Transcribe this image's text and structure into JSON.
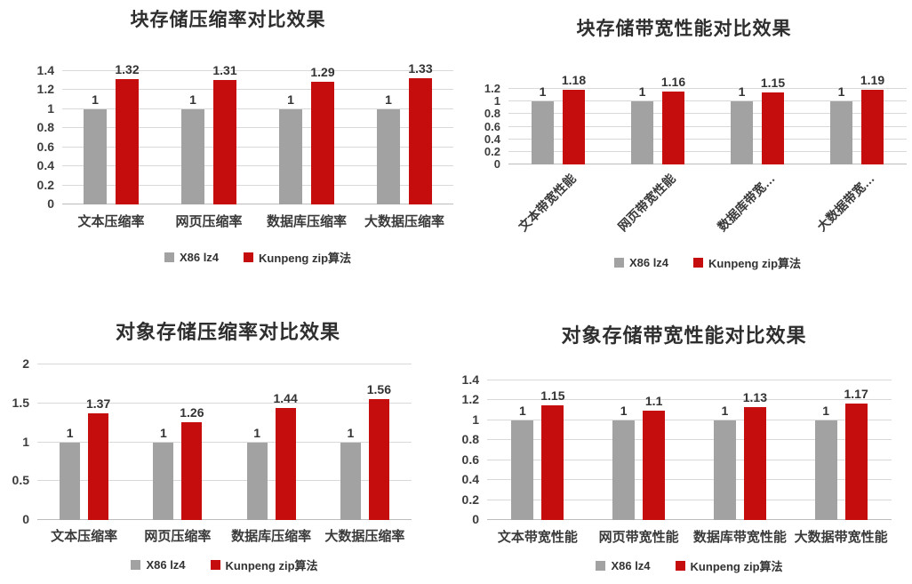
{
  "page": {
    "background": "#ffffff"
  },
  "colors": {
    "series_x86": "#a2a2a2",
    "series_kunpeng": "#c60d0d",
    "gridline": "#d9d9d9",
    "text": "#3a3a3a"
  },
  "legend": {
    "x86_label": "X86 lz4",
    "kunpeng_label": "Kunpeng zip算法"
  },
  "chart_data": [
    {
      "id": "block-storage-compression",
      "type": "bar",
      "title": "块存储压缩率对比效果",
      "categories": [
        "文本压缩率",
        "网页压缩率",
        "数据库压缩率",
        "大数据压缩率"
      ],
      "series": [
        {
          "name": "X86 lz4",
          "color": "#a2a2a2",
          "values": [
            1,
            1,
            1,
            1
          ]
        },
        {
          "name": "Kunpeng zip算法",
          "color": "#c60d0d",
          "values": [
            1.32,
            1.31,
            1.29,
            1.33
          ]
        }
      ],
      "ylim": [
        0,
        1.4
      ],
      "yticks": [
        0,
        0.2,
        0.4,
        0.6,
        0.8,
        1,
        1.2,
        1.4
      ],
      "grid": true,
      "value_labels": true,
      "legend_position": "bottom",
      "xlabel_rotation": 0
    },
    {
      "id": "block-storage-bandwidth",
      "type": "bar",
      "title": "块存储带宽性能对比效果",
      "categories": [
        "文本带宽性能",
        "网页带宽性能",
        "数据库带宽…",
        "大数据带宽…"
      ],
      "series": [
        {
          "name": "X86 lz4",
          "color": "#a2a2a2",
          "values": [
            1,
            1,
            1,
            1
          ]
        },
        {
          "name": "Kunpeng zip算法",
          "color": "#c60d0d",
          "values": [
            1.18,
            1.16,
            1.15,
            1.19
          ]
        }
      ],
      "ylim": [
        0,
        1.2
      ],
      "yticks": [
        0,
        0.2,
        0.4,
        0.6,
        0.8,
        1,
        1.2
      ],
      "grid": true,
      "value_labels": true,
      "legend_position": "bottom",
      "xlabel_rotation": 45
    },
    {
      "id": "object-storage-compression",
      "type": "bar",
      "title": "对象存储压缩率对比效果",
      "categories": [
        "文本压缩率",
        "网页压缩率",
        "数据库压缩率",
        "大数据压缩率"
      ],
      "series": [
        {
          "name": "X86 lz4",
          "color": "#a2a2a2",
          "values": [
            1,
            1,
            1,
            1
          ]
        },
        {
          "name": "Kunpeng zip算法",
          "color": "#c60d0d",
          "values": [
            1.37,
            1.26,
            1.44,
            1.56
          ]
        }
      ],
      "ylim": [
        0,
        2
      ],
      "yticks": [
        0,
        0.5,
        1,
        1.5,
        2
      ],
      "grid": true,
      "value_labels": true,
      "legend_position": "bottom",
      "xlabel_rotation": 0
    },
    {
      "id": "object-storage-bandwidth",
      "type": "bar",
      "title": "对象存储带宽性能对比效果",
      "categories": [
        "文本带宽性能",
        "网页带宽性能",
        "数据库带宽性能",
        "大数据带宽性能"
      ],
      "series": [
        {
          "name": "X86 lz4",
          "color": "#a2a2a2",
          "values": [
            1,
            1,
            1,
            1
          ]
        },
        {
          "name": "Kunpeng zip算法",
          "color": "#c60d0d",
          "values": [
            1.15,
            1.1,
            1.13,
            1.17
          ]
        }
      ],
      "ylim": [
        0,
        1.4
      ],
      "yticks": [
        0,
        0.2,
        0.4,
        0.6,
        0.8,
        1,
        1.2,
        1.4
      ],
      "grid": true,
      "value_labels": true,
      "legend_position": "bottom",
      "xlabel_rotation": 0
    }
  ]
}
